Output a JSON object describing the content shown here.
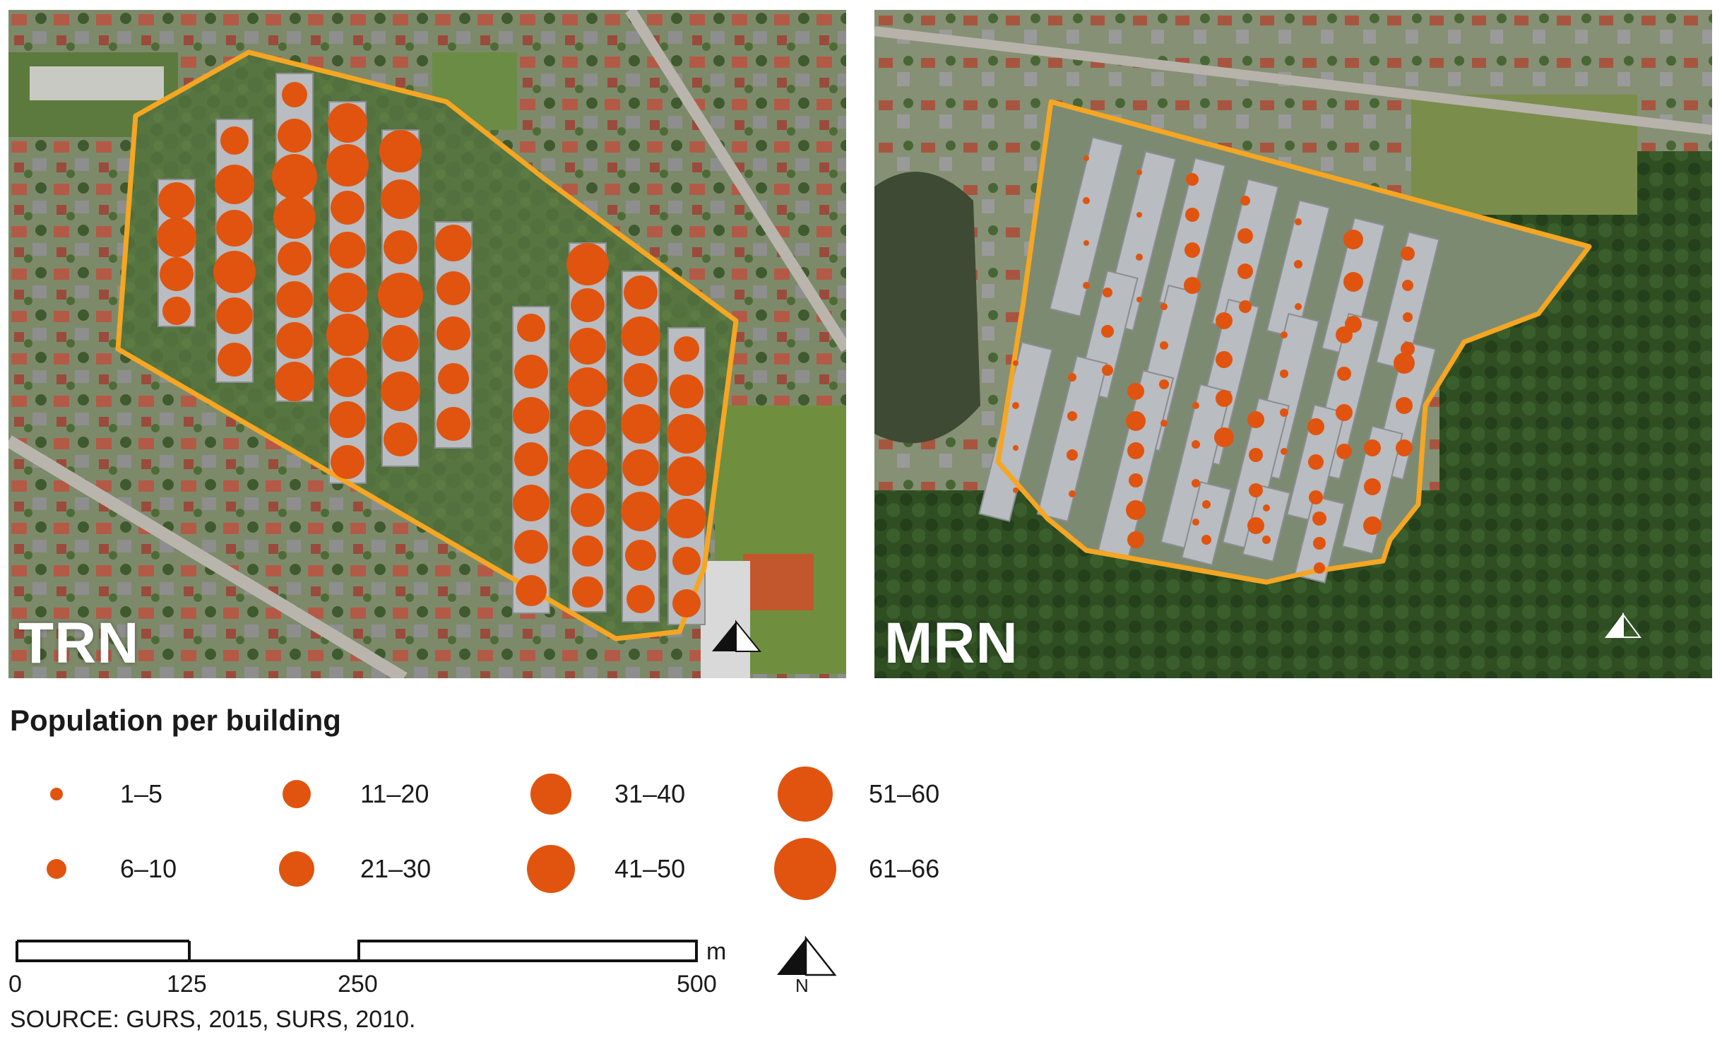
{
  "colors": {
    "symbol": "#e0540f",
    "boundary": "#f5a623",
    "scale_bar": "#111111"
  },
  "maps": [
    {
      "id": "trn",
      "label": "TRN"
    },
    {
      "id": "mrn",
      "label": "MRN"
    }
  ],
  "north_arrow": {
    "label": "N",
    "icon": "north-arrow-icon"
  },
  "legend": {
    "title": "Population per building",
    "classes": [
      {
        "label": "1–5",
        "min": 1,
        "max": 5
      },
      {
        "label": "6–10",
        "min": 6,
        "max": 10
      },
      {
        "label": "11–20",
        "min": 11,
        "max": 20
      },
      {
        "label": "21–30",
        "min": 21,
        "max": 30
      },
      {
        "label": "31–40",
        "min": 31,
        "max": 40
      },
      {
        "label": "41–50",
        "min": 41,
        "max": 50
      },
      {
        "label": "51–60",
        "min": 51,
        "max": 60
      },
      {
        "label": "61–66",
        "min": 61,
        "max": 66
      }
    ]
  },
  "scale_bar": {
    "unit": "m",
    "ticks": [
      "0",
      "125",
      "250",
      "500"
    ]
  },
  "source": "SOURCE: GURS, 2015, SURS, 2010."
}
